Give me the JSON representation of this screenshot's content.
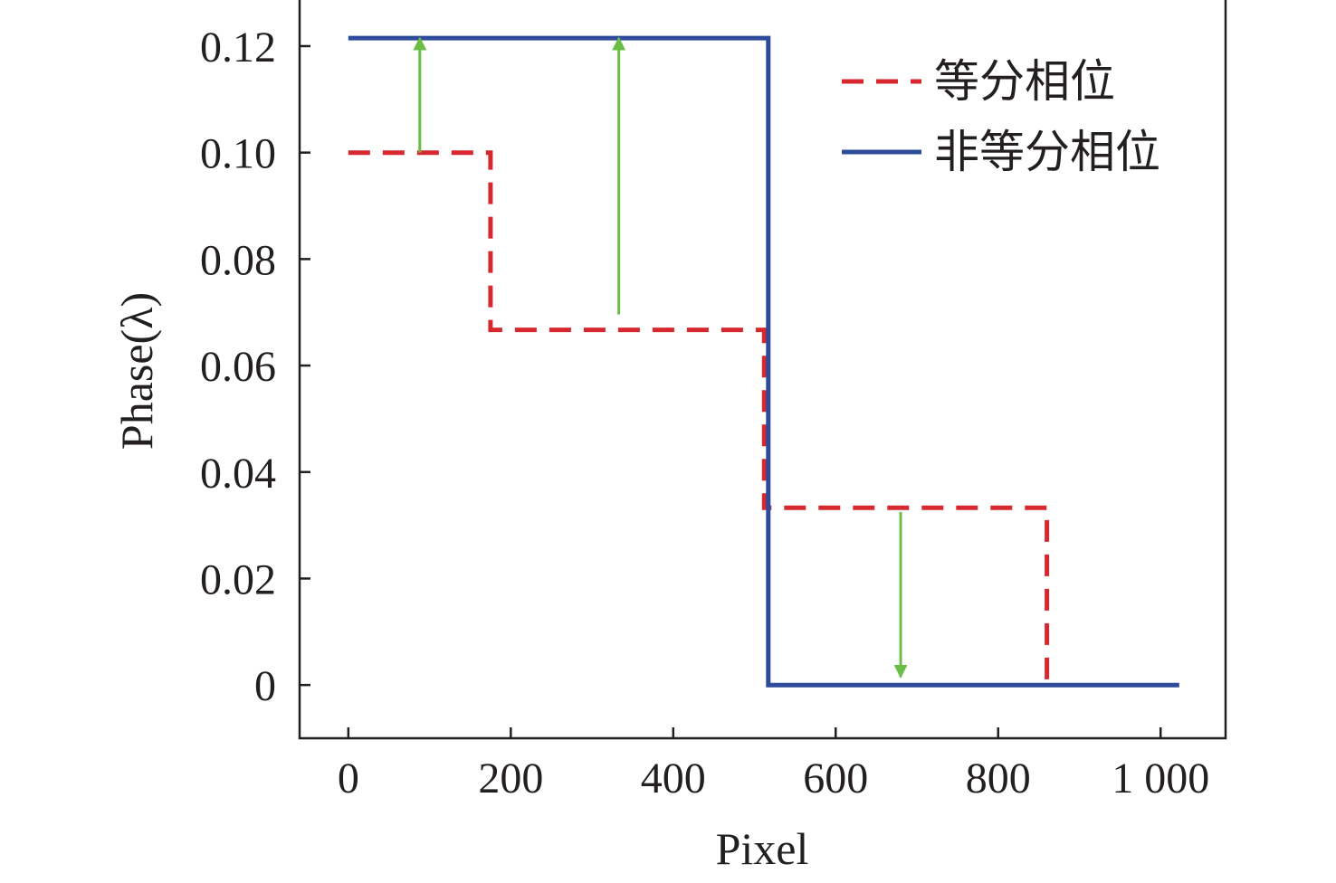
{
  "chart_data": {
    "type": "line",
    "title": "",
    "xlabel": "Pixel",
    "ylabel": "Phase(λ)",
    "xlim": [
      -60,
      1080
    ],
    "ylim": [
      -0.01,
      0.129
    ],
    "xticks": [
      {
        "value": 0,
        "label": "0"
      },
      {
        "value": 200,
        "label": "200"
      },
      {
        "value": 400,
        "label": "400"
      },
      {
        "value": 600,
        "label": "600"
      },
      {
        "value": 800,
        "label": "800"
      },
      {
        "value": 1000,
        "label": "1 000"
      }
    ],
    "yticks": [
      {
        "value": 0,
        "label": "0"
      },
      {
        "value": 0.02,
        "label": "0.02"
      },
      {
        "value": 0.04,
        "label": "0.04"
      },
      {
        "value": 0.06,
        "label": "0.06"
      },
      {
        "value": 0.08,
        "label": "0.08"
      },
      {
        "value": 0.1,
        "label": "0.10"
      },
      {
        "value": 0.12,
        "label": "0.12"
      }
    ],
    "grid": false,
    "legend_position": "top-right",
    "series": [
      {
        "name": "等分相位",
        "style": "dashed",
        "color": "#d7282f",
        "x": [
          0,
          175,
          175,
          512,
          512,
          860,
          860
        ],
        "y": [
          0.1,
          0.1,
          0.0667,
          0.0667,
          0.0333,
          0.0333,
          0
        ]
      },
      {
        "name": "非等分相位",
        "style": "solid",
        "color": "#2d4b9a",
        "x": [
          0,
          517,
          517,
          1023
        ],
        "y": [
          0.1215,
          0.1215,
          0,
          0
        ]
      }
    ],
    "annotations": [
      {
        "type": "arrow",
        "color": "#6abd45",
        "x": 88,
        "y_from": 0.1,
        "y_to": 0.1215
      },
      {
        "type": "arrow",
        "color": "#6abd45",
        "x": 333,
        "y_from": 0.0696,
        "y_to": 0.1215
      },
      {
        "type": "arrow",
        "color": "#6abd45",
        "x": 680,
        "y_from": 0.0325,
        "y_to": 0.0015
      }
    ]
  }
}
